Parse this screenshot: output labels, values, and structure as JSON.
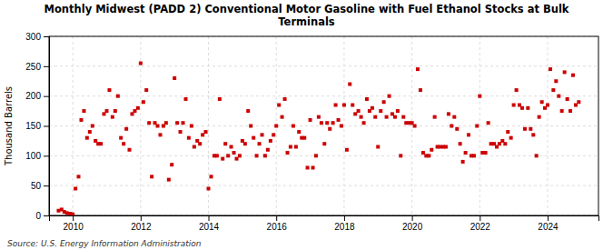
{
  "chart_data": {
    "type": "scatter",
    "title": "Monthly Midwest (PADD 2) Conventional Motor Gasoline with Fuel Ethanol Stocks at Bulk\nTerminals",
    "ylabel": "Thousand Barrels",
    "annotations": [
      "Source: U.S. Energy Information Administration"
    ],
    "color": "#cc0000",
    "marker": "square",
    "grid": true,
    "xlim": [
      2009.3,
      2025.5
    ],
    "xticks": [
      2010,
      2012,
      2014,
      2016,
      2018,
      2020,
      2022,
      2024
    ],
    "ylim": [
      0,
      300
    ],
    "yticks": [
      0,
      50,
      100,
      150,
      200,
      250,
      300
    ],
    "x": [
      2009.58,
      2009.67,
      2009.75,
      2009.83,
      2009.92,
      2010.0,
      2010.08,
      2010.17,
      2010.25,
      2010.33,
      2010.42,
      2010.5,
      2010.58,
      2010.67,
      2010.75,
      2010.83,
      2010.92,
      2011.0,
      2011.08,
      2011.17,
      2011.25,
      2011.33,
      2011.42,
      2011.5,
      2011.58,
      2011.67,
      2011.75,
      2011.83,
      2011.92,
      2012.0,
      2012.08,
      2012.17,
      2012.25,
      2012.33,
      2012.42,
      2012.5,
      2012.58,
      2012.67,
      2012.75,
      2012.83,
      2012.92,
      2013.0,
      2013.08,
      2013.17,
      2013.25,
      2013.33,
      2013.42,
      2013.5,
      2013.58,
      2013.67,
      2013.75,
      2013.83,
      2013.92,
      2014.0,
      2014.08,
      2014.17,
      2014.25,
      2014.33,
      2014.42,
      2014.5,
      2014.58,
      2014.67,
      2014.75,
      2014.83,
      2014.92,
      2015.0,
      2015.08,
      2015.17,
      2015.25,
      2015.33,
      2015.42,
      2015.5,
      2015.58,
      2015.67,
      2015.75,
      2015.83,
      2015.92,
      2016.0,
      2016.08,
      2016.17,
      2016.25,
      2016.33,
      2016.42,
      2016.5,
      2016.58,
      2016.67,
      2016.75,
      2016.83,
      2016.92,
      2017.0,
      2017.08,
      2017.17,
      2017.25,
      2017.33,
      2017.42,
      2017.5,
      2017.58,
      2017.67,
      2017.75,
      2017.83,
      2017.92,
      2018.0,
      2018.08,
      2018.17,
      2018.25,
      2018.33,
      2018.42,
      2018.5,
      2018.58,
      2018.67,
      2018.75,
      2018.83,
      2018.92,
      2019.0,
      2019.08,
      2019.17,
      2019.25,
      2019.33,
      2019.42,
      2019.5,
      2019.58,
      2019.67,
      2019.75,
      2019.83,
      2019.92,
      2020.0,
      2020.08,
      2020.17,
      2020.25,
      2020.33,
      2020.42,
      2020.5,
      2020.58,
      2020.67,
      2020.75,
      2020.83,
      2020.92,
      2021.0,
      2021.08,
      2021.17,
      2021.25,
      2021.33,
      2021.42,
      2021.5,
      2021.58,
      2021.67,
      2021.75,
      2021.83,
      2021.92,
      2022.0,
      2022.08,
      2022.17,
      2022.25,
      2022.33,
      2022.42,
      2022.5,
      2022.58,
      2022.67,
      2022.75,
      2022.83,
      2022.92,
      2023.0,
      2023.08,
      2023.17,
      2023.25,
      2023.33,
      2023.42,
      2023.5,
      2023.58,
      2023.67,
      2023.75,
      2023.83,
      2023.92,
      2024.0,
      2024.08,
      2024.17,
      2024.25,
      2024.33,
      2024.42,
      2024.5,
      2024.58,
      2024.67,
      2024.75,
      2024.83,
      2024.92
    ],
    "values": [
      8,
      10,
      6,
      4,
      3,
      2,
      45,
      65,
      160,
      175,
      130,
      140,
      150,
      125,
      120,
      120,
      170,
      175,
      210,
      165,
      175,
      200,
      130,
      120,
      145,
      110,
      170,
      175,
      180,
      255,
      190,
      210,
      155,
      65,
      155,
      150,
      135,
      150,
      155,
      60,
      85,
      230,
      155,
      140,
      155,
      195,
      130,
      150,
      115,
      125,
      120,
      135,
      140,
      45,
      65,
      100,
      100,
      195,
      95,
      120,
      100,
      115,
      105,
      95,
      100,
      125,
      120,
      175,
      150,
      130,
      100,
      120,
      135,
      100,
      110,
      125,
      135,
      150,
      185,
      165,
      195,
      105,
      115,
      150,
      115,
      140,
      130,
      130,
      80,
      160,
      80,
      100,
      165,
      155,
      120,
      155,
      145,
      155,
      185,
      160,
      150,
      185,
      110,
      220,
      185,
      170,
      175,
      165,
      155,
      195,
      175,
      180,
      165,
      115,
      175,
      190,
      165,
      200,
      170,
      165,
      175,
      100,
      165,
      155,
      155,
      155,
      150,
      245,
      210,
      105,
      100,
      100,
      110,
      165,
      115,
      115,
      115,
      115,
      170,
      150,
      165,
      145,
      120,
      90,
      105,
      135,
      100,
      100,
      150,
      200,
      105,
      105,
      155,
      120,
      120,
      115,
      120,
      125,
      120,
      140,
      130,
      185,
      210,
      185,
      180,
      145,
      180,
      145,
      135,
      100,
      165,
      190,
      180,
      185,
      245,
      210,
      225,
      200,
      175,
      240,
      195,
      175,
      235,
      185,
      190
    ]
  }
}
